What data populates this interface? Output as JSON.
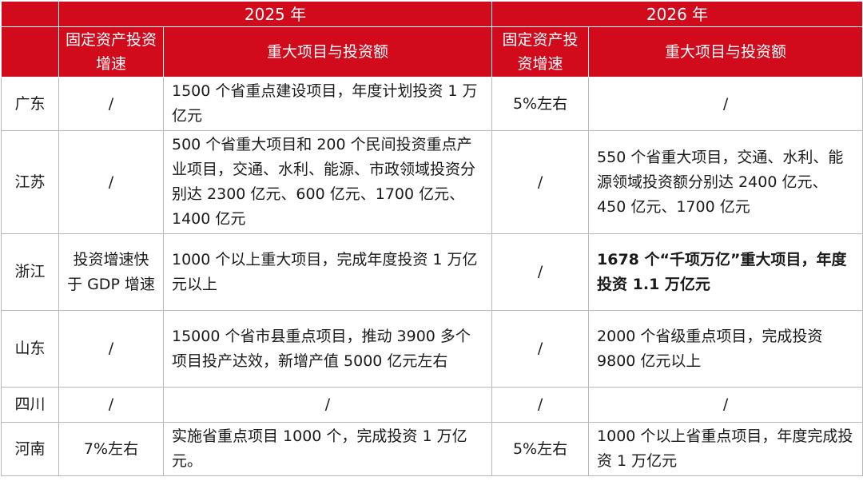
{
  "years": [
    "2025 年",
    "2026 年"
  ],
  "headers": {
    "growth": "固定资产投资增速",
    "projects": "重大项目与投资额"
  },
  "rows": [
    {
      "province": "广东",
      "g2025": "/",
      "p2025": "1500 个省重点建设项目，年度计划投资 1 万亿元",
      "g2026": "5%左右",
      "p2026": "/"
    },
    {
      "province": "江苏",
      "g2025": "/",
      "p2025": "500 个省重大项目和 200 个民间投资重点产业项目，交通、水利、能源、市政领域投资分别达 2300 亿元、600 亿元、1700 亿元、1400 亿元",
      "g2026": "/",
      "p2026": "550 个省重大项目，交通、水利、能源领域投资额分别达 2400 亿元、450 亿元、1700 亿元"
    },
    {
      "province": "浙江",
      "g2025": "投资增速快于 GDP 增速",
      "p2025": "1000 个以上重大项目，完成年度投资 1 万亿元以上",
      "g2026": "/",
      "p2026": "1678 个“千项万亿”重大项目，年度投资 1.1 万亿元"
    },
    {
      "province": "山东",
      "g2025": "/",
      "p2025": "15000 个省市县重点项目，推动 3900 多个项目投产达效，新增产值 5000 亿元左右",
      "g2026": "/",
      "p2026": "2000 个省级重点项目，完成投资 9800 亿元以上"
    },
    {
      "province": "四川",
      "g2025": "/",
      "p2025": "/",
      "g2026": "/",
      "p2026": "/"
    },
    {
      "province": "河南",
      "g2025": "7%左右",
      "p2025": "实施省重点项目 1000 个，完成投资 1 万亿元。",
      "g2026": "5%左右",
      "p2026": "1000 个以上省重点项目，年度完成投资 1 万亿元"
    }
  ]
}
